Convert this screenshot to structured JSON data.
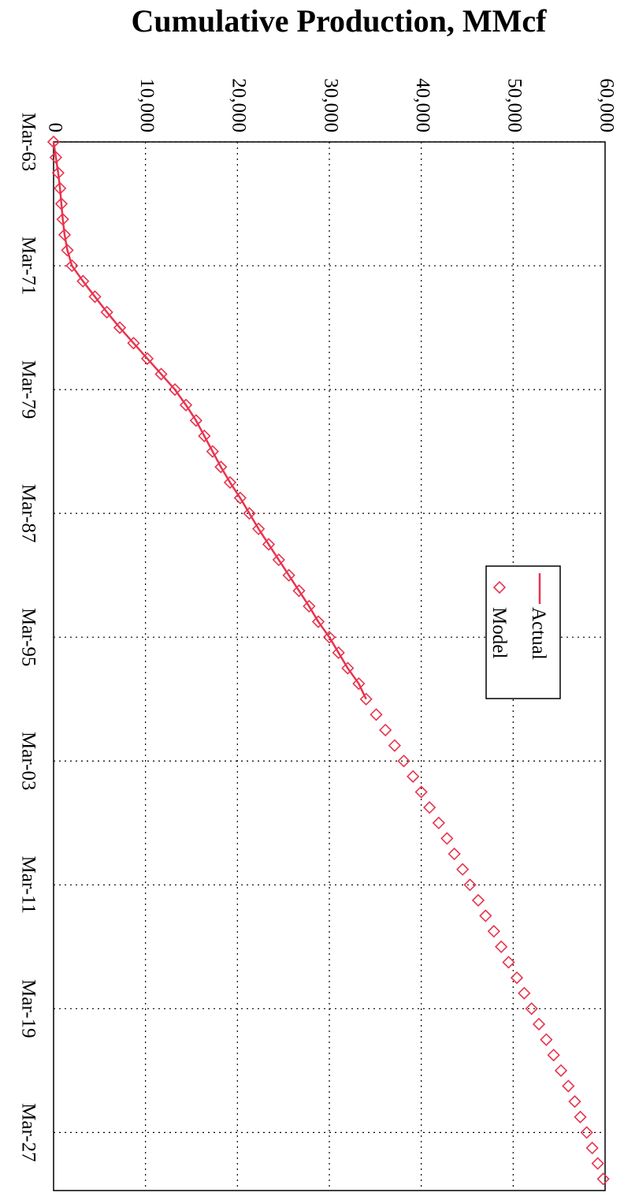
{
  "chart_data": {
    "type": "line",
    "title": "Cumulative Production, MMcf",
    "xlabel": "",
    "ylabel": "",
    "x_ticks": [
      "Mar-63",
      "Mar-71",
      "Mar-79",
      "Mar-87",
      "Mar-95",
      "Mar-03",
      "Mar-11",
      "Mar-19",
      "Mar-27"
    ],
    "y_ticks": [
      "0",
      "10,000",
      "20,000",
      "30,000",
      "40,000",
      "50,000",
      "60,000"
    ],
    "xlim": [
      "1963-03",
      "2030-12"
    ],
    "ylim": [
      0,
      60000
    ],
    "grid": true,
    "orientation": "rotated 90° clockwise (value axis runs left-to-right across the page, time axis runs top-to-bottom)",
    "legend": {
      "placement": "right",
      "entries": [
        "Actual",
        "Model"
      ]
    },
    "series": [
      {
        "name": "Actual",
        "marker": "line",
        "color": "#e8344e",
        "x": [
          "1963-03",
          "1964-03",
          "1965-03",
          "1966-03",
          "1967-03",
          "1968-03",
          "1969-03",
          "1970-03",
          "1971-03",
          "1972-03",
          "1973-03",
          "1974-03",
          "1975-03",
          "1976-03",
          "1977-03",
          "1978-03",
          "1979-03",
          "1980-03",
          "1981-03",
          "1982-03",
          "1983-03",
          "1984-03",
          "1985-03",
          "1986-03",
          "1987-03",
          "1988-03",
          "1989-03",
          "1990-03",
          "1991-03",
          "1992-03",
          "1993-03",
          "1994-03",
          "1995-03",
          "1996-03",
          "1997-03",
          "1998-03",
          "1999-03"
        ],
        "y": [
          0,
          250,
          500,
          700,
          850,
          1000,
          1200,
          1500,
          2000,
          3200,
          4500,
          5800,
          7200,
          8700,
          10200,
          11700,
          13200,
          14400,
          15500,
          16400,
          17300,
          18200,
          19200,
          20300,
          21300,
          22300,
          23400,
          24500,
          25600,
          26700,
          27800,
          28800,
          30000,
          31000,
          32000,
          33200,
          34000
        ]
      },
      {
        "name": "Model",
        "marker": "diamond",
        "color": "#e8344e",
        "x": [
          "1963-03",
          "1964-03",
          "1965-03",
          "1966-03",
          "1967-03",
          "1968-03",
          "1969-03",
          "1970-03",
          "1971-03",
          "1972-03",
          "1973-03",
          "1974-03",
          "1975-03",
          "1976-03",
          "1977-03",
          "1978-03",
          "1979-03",
          "1980-03",
          "1981-03",
          "1982-03",
          "1983-03",
          "1984-03",
          "1985-03",
          "1986-03",
          "1987-03",
          "1988-03",
          "1989-03",
          "1990-03",
          "1991-03",
          "1992-03",
          "1993-03",
          "1994-03",
          "1995-03",
          "1996-03",
          "1997-03",
          "1998-03",
          "1999-03",
          "2000-03",
          "2001-03",
          "2002-03",
          "2003-03",
          "2004-03",
          "2005-03",
          "2006-03",
          "2007-03",
          "2008-03",
          "2009-03",
          "2010-03",
          "2011-03",
          "2012-03",
          "2013-03",
          "2014-03",
          "2015-03",
          "2016-03",
          "2017-03",
          "2018-03",
          "2019-03",
          "2020-03",
          "2021-03",
          "2022-03",
          "2023-03",
          "2024-03",
          "2025-03",
          "2026-03",
          "2027-03",
          "2028-03",
          "2029-03",
          "2030-03"
        ],
        "y": [
          0,
          250,
          500,
          700,
          850,
          1000,
          1200,
          1500,
          2000,
          3200,
          4500,
          5800,
          7200,
          8700,
          10200,
          11700,
          13200,
          14400,
          15500,
          16400,
          17300,
          18200,
          19200,
          20300,
          21300,
          22300,
          23400,
          24500,
          25600,
          26700,
          27800,
          28800,
          30000,
          31000,
          32000,
          33200,
          34000,
          35100,
          36100,
          37100,
          38100,
          39100,
          40000,
          40900,
          41900,
          42800,
          43600,
          44500,
          45300,
          46200,
          47000,
          47900,
          48700,
          49500,
          50400,
          51200,
          52000,
          52800,
          53600,
          54400,
          55200,
          56000,
          56700,
          57300,
          58000,
          58600,
          59200,
          59800
        ]
      }
    ]
  }
}
